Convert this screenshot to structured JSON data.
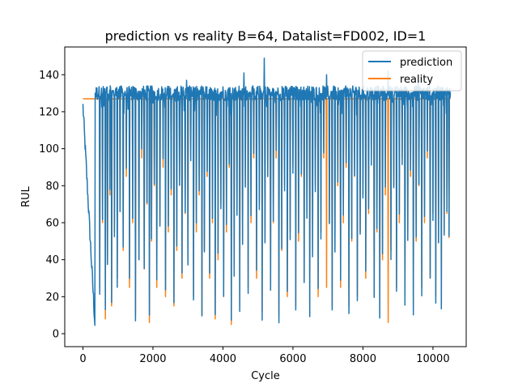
{
  "chart_data": {
    "type": "line",
    "title": "prediction vs reality B=64, Datalist=FD002, ID=1",
    "xlabel": "Cycle",
    "ylabel": "RUL",
    "xlim": [
      -520,
      10950
    ],
    "ylim": [
      -7,
      155
    ],
    "xticks": [
      0,
      2000,
      4000,
      6000,
      8000,
      10000
    ],
    "xtick_labels": [
      "0",
      "2000",
      "4000",
      "6000",
      "8000",
      "10000"
    ],
    "yticks": [
      0,
      20,
      40,
      60,
      80,
      100,
      120,
      140
    ],
    "ytick_labels": [
      "0",
      "20",
      "40",
      "60",
      "80",
      "100",
      "120",
      "140"
    ],
    "grid": false,
    "legend_position": "top-right",
    "x_range": [
      0,
      10500
    ],
    "cap_value": 127,
    "initial_drop_end_cycle": 350,
    "initial_drop_min": 2,
    "series": [
      {
        "name": "prediction",
        "color": "#1f77b4",
        "peak": 149,
        "typical_high": [
          126,
          134
        ]
      },
      {
        "name": "reality",
        "color": "#ff7f0e",
        "plateau": 127
      }
    ],
    "reality_dips": [
      [
        480,
        25
      ],
      [
        560,
        60
      ],
      [
        640,
        8
      ],
      [
        700,
        40
      ],
      [
        770,
        75
      ],
      [
        820,
        15
      ],
      [
        900,
        55
      ],
      [
        980,
        30
      ],
      [
        1060,
        70
      ],
      [
        1150,
        45
      ],
      [
        1240,
        85
      ],
      [
        1330,
        25
      ],
      [
        1420,
        60
      ],
      [
        1500,
        10
      ],
      [
        1600,
        40
      ],
      [
        1680,
        95
      ],
      [
        1750,
        35
      ],
      [
        1830,
        70
      ],
      [
        1900,
        6
      ],
      [
        1960,
        50
      ],
      [
        2040,
        80
      ],
      [
        2110,
        25
      ],
      [
        2200,
        60
      ],
      [
        2290,
        90
      ],
      [
        2360,
        20
      ],
      [
        2440,
        55
      ],
      [
        2520,
        75
      ],
      [
        2600,
        15
      ],
      [
        2680,
        45
      ],
      [
        2760,
        85
      ],
      [
        2830,
        30
      ],
      [
        2920,
        65
      ],
      [
        3000,
        40
      ],
      [
        3080,
        95
      ],
      [
        3160,
        20
      ],
      [
        3240,
        55
      ],
      [
        3320,
        75
      ],
      [
        3400,
        10
      ],
      [
        3470,
        45
      ],
      [
        3550,
        85
      ],
      [
        3620,
        30
      ],
      [
        3700,
        60
      ],
      [
        3780,
        8
      ],
      [
        3860,
        40
      ],
      [
        3940,
        70
      ],
      [
        4020,
        20
      ],
      [
        4100,
        55
      ],
      [
        4180,
        90
      ],
      [
        4240,
        5
      ],
      [
        4320,
        35
      ],
      [
        4400,
        65
      ],
      [
        4480,
        15
      ],
      [
        4560,
        50
      ],
      [
        4640,
        80
      ],
      [
        4720,
        25
      ],
      [
        4800,
        60
      ],
      [
        4880,
        95
      ],
      [
        4960,
        30
      ],
      [
        5040,
        70
      ],
      [
        5120,
        12
      ],
      [
        5200,
        50
      ],
      [
        5280,
        85
      ],
      [
        5360,
        25
      ],
      [
        5440,
        60
      ],
      [
        5520,
        95
      ],
      [
        5600,
        10
      ],
      [
        5680,
        45
      ],
      [
        5760,
        80
      ],
      [
        5840,
        20
      ],
      [
        5920,
        55
      ],
      [
        6000,
        90
      ],
      [
        6080,
        15
      ],
      [
        6160,
        50
      ],
      [
        6240,
        85
      ],
      [
        6320,
        30
      ],
      [
        6400,
        65
      ],
      [
        6480,
        10
      ],
      [
        6560,
        45
      ],
      [
        6640,
        80
      ],
      [
        6720,
        20
      ],
      [
        6800,
        55
      ],
      [
        6880,
        95
      ],
      [
        6960,
        25
      ],
      [
        7040,
        60
      ],
      [
        7120,
        15
      ],
      [
        7200,
        45
      ],
      [
        7280,
        80
      ],
      [
        7360,
        25
      ],
      [
        7440,
        60
      ],
      [
        7520,
        90
      ],
      [
        7600,
        15
      ],
      [
        7680,
        50
      ],
      [
        7760,
        85
      ],
      [
        7840,
        20
      ],
      [
        7920,
        55
      ],
      [
        8000,
        75
      ],
      [
        8080,
        30
      ],
      [
        8160,
        65
      ],
      [
        8240,
        95
      ],
      [
        8320,
        20
      ],
      [
        8400,
        55
      ],
      [
        8480,
        9
      ],
      [
        8560,
        40
      ],
      [
        8640,
        75
      ],
      [
        8720,
        6
      ],
      [
        8800,
        45
      ],
      [
        8880,
        80
      ],
      [
        8960,
        25
      ],
      [
        9040,
        60
      ],
      [
        9120,
        95
      ],
      [
        9200,
        20
      ],
      [
        9280,
        55
      ],
      [
        9360,
        85
      ],
      [
        9440,
        15
      ],
      [
        9520,
        50
      ],
      [
        9600,
        80
      ],
      [
        9680,
        25
      ],
      [
        9760,
        60
      ],
      [
        9840,
        95
      ],
      [
        9920,
        30
      ],
      [
        10000,
        65
      ],
      [
        10080,
        20
      ],
      [
        10160,
        50
      ],
      [
        10240,
        15
      ],
      [
        10320,
        55
      ],
      [
        10400,
        65
      ],
      [
        10460,
        52
      ]
    ]
  }
}
